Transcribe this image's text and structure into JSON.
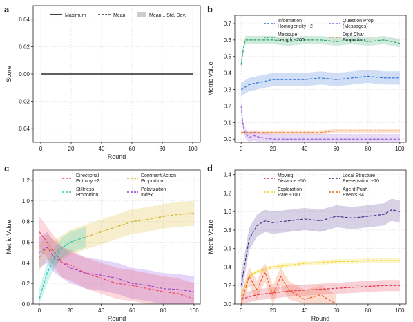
{
  "chart_data": [
    {
      "panel_label": "a",
      "type": "line",
      "xlabel": "Round",
      "ylabel": "Score",
      "xlim": [
        -5,
        105
      ],
      "ylim": [
        -0.05,
        0.05
      ],
      "xticks": [
        "0",
        "20",
        "40",
        "60",
        "80",
        "100"
      ],
      "yticks": [
        "-0.04",
        "-0.02",
        "0.00",
        "0.02",
        "0.04"
      ],
      "grid": true,
      "legend_placement": "top",
      "legend": [
        {
          "label": "Maximum",
          "style": "solid",
          "color": "#000000"
        },
        {
          "label": "Mean",
          "style": "dashed",
          "color": "#333333"
        },
        {
          "label": "Mean ± Std. Dev.",
          "style": "band",
          "color": "#cccccc"
        }
      ],
      "series": [
        {
          "color": "#000000",
          "style": "solid",
          "x": [
            0,
            100
          ],
          "y": [
            0,
            0
          ]
        }
      ]
    },
    {
      "panel_label": "b",
      "type": "line",
      "xlabel": "",
      "ylabel": "Metric Value",
      "xlim": [
        -4,
        104
      ],
      "ylim": [
        -0.02,
        0.75
      ],
      "xticks": [
        "0",
        "20",
        "40",
        "60",
        "80",
        "100"
      ],
      "yticks": [
        "0.0",
        "0.1",
        "0.2",
        "0.3",
        "0.4",
        "0.5",
        "0.6",
        "0.7"
      ],
      "grid": true,
      "legend_placement": "top",
      "legend": [
        {
          "label": [
            "Information",
            "Homogeneity ÷2"
          ],
          "color": "#2f6fd6"
        },
        {
          "label": [
            "Question Prop.",
            "(Messages)"
          ],
          "color": "#9b5bd9"
        },
        {
          "label": [
            "Message",
            "Length ÷200"
          ],
          "color": "#2aa36b"
        },
        {
          "label": [
            "Digit Char",
            "Proportion"
          ],
          "color": "#f08a3c"
        }
      ],
      "series": [
        {
          "color": "#2aa36b",
          "x": [
            0,
            1,
            2,
            3,
            5,
            8,
            12,
            20,
            30,
            40,
            50,
            60,
            70,
            80,
            90,
            100
          ],
          "y": [
            0.45,
            0.52,
            0.58,
            0.6,
            0.6,
            0.6,
            0.6,
            0.6,
            0.59,
            0.6,
            0.6,
            0.59,
            0.6,
            0.59,
            0.6,
            0.58
          ],
          "band": 0.025
        },
        {
          "color": "#2f6fd6",
          "x": [
            0,
            5,
            10,
            15,
            20,
            30,
            40,
            50,
            60,
            70,
            80,
            90,
            100
          ],
          "y": [
            0.3,
            0.33,
            0.34,
            0.35,
            0.36,
            0.36,
            0.36,
            0.37,
            0.36,
            0.37,
            0.38,
            0.37,
            0.37
          ],
          "band": 0.04
        },
        {
          "color": "#f08a3c",
          "x": [
            0,
            10,
            20,
            30,
            40,
            50,
            60,
            70,
            80,
            90,
            100
          ],
          "y": [
            0.04,
            0.04,
            0.04,
            0.04,
            0.04,
            0.04,
            0.05,
            0.05,
            0.05,
            0.05,
            0.05
          ],
          "band": 0.012
        },
        {
          "color": "#9b5bd9",
          "x": [
            0,
            1,
            2,
            3,
            5,
            8,
            12,
            20,
            30,
            40,
            50,
            60,
            70,
            80,
            85,
            90,
            100
          ],
          "y": [
            0.2,
            0.1,
            0.05,
            0.03,
            0.01,
            0.02,
            0.01,
            0.0,
            0.0,
            0.0,
            0.0,
            0.0,
            0.0,
            0.0,
            0.0,
            0.0,
            0.0
          ],
          "band": 0.03
        }
      ]
    },
    {
      "panel_label": "c",
      "type": "line",
      "xlabel": "Round",
      "ylabel": "Metric Value",
      "xlim": [
        -4,
        104
      ],
      "ylim": [
        0.0,
        1.3
      ],
      "xticks": [
        "0",
        "20",
        "40",
        "60",
        "80",
        "100"
      ],
      "yticks": [
        "0.0",
        "0.2",
        "0.4",
        "0.6",
        "0.8",
        "1.0",
        "1.2"
      ],
      "grid": true,
      "legend_placement": "top",
      "legend": [
        {
          "label": [
            "Directional",
            "Entropy ÷2"
          ],
          "color": "#f04a5a"
        },
        {
          "label": [
            "Dominant Action",
            "Proportion"
          ],
          "color": "#d4b21a"
        },
        {
          "label": [
            "Stillness",
            "Proportion"
          ],
          "color": "#26c7b8"
        },
        {
          "label": [
            "Polarization",
            "Index"
          ],
          "color": "#8a3fe0"
        }
      ],
      "series": [
        {
          "color": "#d4b21a",
          "x": [
            0,
            5,
            10,
            15,
            20,
            30,
            40,
            50,
            60,
            70,
            80,
            90,
            100
          ],
          "y": [
            0.45,
            0.55,
            0.5,
            0.55,
            0.6,
            0.65,
            0.7,
            0.75,
            0.8,
            0.82,
            0.85,
            0.87,
            0.88
          ],
          "band": 0.12
        },
        {
          "color": "#8a3fe0",
          "x": [
            0,
            5,
            10,
            15,
            20,
            30,
            40,
            50,
            60,
            70,
            80,
            90,
            100
          ],
          "y": [
            0.5,
            0.55,
            0.45,
            0.4,
            0.35,
            0.3,
            0.28,
            0.25,
            0.2,
            0.18,
            0.15,
            0.14,
            0.12
          ],
          "band": 0.15
        },
        {
          "color": "#f04a5a",
          "x": [
            0,
            5,
            10,
            15,
            20,
            30,
            40,
            50,
            60,
            70,
            80,
            90,
            100
          ],
          "y": [
            0.7,
            0.6,
            0.5,
            0.4,
            0.38,
            0.3,
            0.25,
            0.2,
            0.18,
            0.15,
            0.12,
            0.1,
            0.05
          ],
          "band": 0.15
        },
        {
          "color": "#26c7b8",
          "x": [
            0,
            5,
            10,
            15,
            20,
            30
          ],
          "y": [
            0.05,
            0.3,
            0.45,
            0.55,
            0.6,
            0.65
          ],
          "band": 0.1
        }
      ]
    },
    {
      "panel_label": "d",
      "type": "line",
      "xlabel": "Round",
      "ylabel": "Metric Value",
      "xlim": [
        -4,
        104
      ],
      "ylim": [
        0.0,
        1.45
      ],
      "xticks": [
        "0",
        "20",
        "40",
        "60",
        "80",
        "100"
      ],
      "yticks": [
        "0.0",
        "0.2",
        "0.4",
        "0.6",
        "0.8",
        "1.0",
        "1.2",
        "1.4"
      ],
      "grid": true,
      "legend_placement": "top",
      "legend": [
        {
          "label": [
            "Moving",
            "Distance ÷50"
          ],
          "color": "#e0304a"
        },
        {
          "label": [
            "Local Structure",
            "Preservation ÷10"
          ],
          "color": "#4b2d8f"
        },
        {
          "label": [
            "Exploration",
            "Rate ÷100"
          ],
          "color": "#f2d21b"
        },
        {
          "label": [
            "Agent Push",
            "Events ÷4"
          ],
          "color": "#f05a28"
        }
      ],
      "series": [
        {
          "color": "#4b2d8f",
          "x": [
            0,
            5,
            10,
            15,
            20,
            30,
            40,
            50,
            60,
            70,
            80,
            90,
            95,
            100
          ],
          "y": [
            0.2,
            0.7,
            0.85,
            0.9,
            0.88,
            0.9,
            0.92,
            0.9,
            0.95,
            0.93,
            0.95,
            0.97,
            1.02,
            1.0
          ],
          "band": 0.12
        },
        {
          "color": "#f2d21b",
          "x": [
            0,
            5,
            10,
            20,
            30,
            40,
            50,
            60,
            70,
            80,
            90,
            100
          ],
          "y": [
            0.1,
            0.3,
            0.35,
            0.4,
            0.42,
            0.44,
            0.45,
            0.46,
            0.46,
            0.47,
            0.47,
            0.47
          ],
          "band": 0.025
        },
        {
          "color": "#e0304a",
          "x": [
            0,
            5,
            10,
            20,
            30,
            40,
            50,
            60,
            70,
            80,
            90,
            100
          ],
          "y": [
            0.05,
            0.08,
            0.1,
            0.12,
            0.14,
            0.15,
            0.16,
            0.17,
            0.18,
            0.19,
            0.2,
            0.2
          ],
          "band": 0.06
        },
        {
          "color": "#f05a28",
          "x": [
            0,
            5,
            10,
            15,
            20,
            25,
            30,
            40,
            50,
            60
          ],
          "y": [
            0.0,
            0.3,
            0.15,
            0.35,
            0.1,
            0.3,
            0.15,
            0.05,
            0.1,
            0.0
          ],
          "band": 0.1
        }
      ]
    }
  ]
}
